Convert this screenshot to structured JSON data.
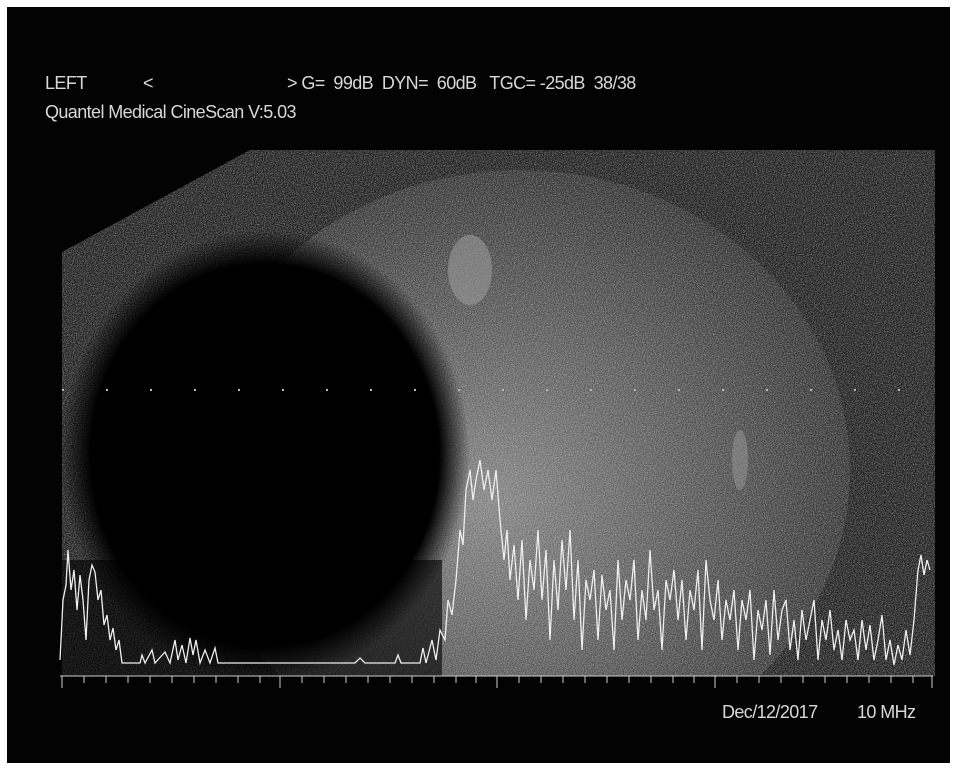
{
  "header": {
    "side": "LEFT",
    "arrow": "<",
    "settings": "> G=  99dB  DYN=  60dB   TGC= -25dB  38/38",
    "device": "Quantel Medical CineScan V:5.03"
  },
  "footer": {
    "date": "Dec/12/2017",
    "frequency": "10 MHz"
  }
}
